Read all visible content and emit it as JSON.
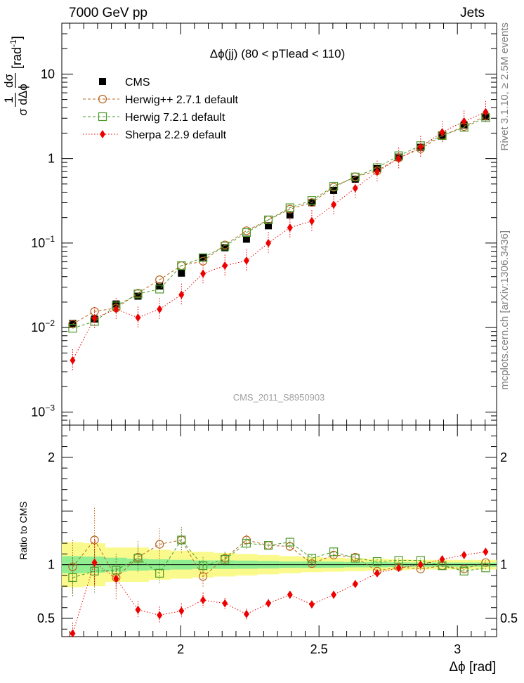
{
  "header": {
    "left": "7000 GeV pp",
    "right": "Jets",
    "side_rivet": "Rivet 3.1.10, ≥ 2.5M events",
    "side_mcplots": "mcplots.cern.ch [arXiv:1306.3436]",
    "watermark": "CMS_2011_S8950903"
  },
  "chart_data": [
    {
      "type": "scatter",
      "panel": "main",
      "title": "Δϕ(jj) (80 < pTlead < 110)",
      "ylabel": "1/σ dσ/dΔϕ [rad⁻¹]",
      "ylabel_parts": {
        "one": "1",
        "dsigma": "dσ",
        "sigma_dphi": "σ dΔϕ",
        "unit": "[rad",
        "exp": "-1",
        "close": "]"
      },
      "xlabel": "Δϕ [rad]",
      "xlim": [
        1.5708,
        3.1416
      ],
      "ylim": [
        0.0007,
        40
      ],
      "yscale": "log",
      "yticks": [
        {
          "value": 0.001,
          "base": "10",
          "exp": "−3"
        },
        {
          "value": 0.01,
          "base": "10",
          "exp": "−2"
        },
        {
          "value": 0.1,
          "base": "10",
          "exp": "−1"
        },
        {
          "value": 1,
          "base": "1",
          "exp": ""
        },
        {
          "value": 10,
          "base": "10",
          "exp": ""
        }
      ],
      "x": [
        1.61,
        1.689,
        1.767,
        1.846,
        1.924,
        2.003,
        2.081,
        2.16,
        2.238,
        2.317,
        2.395,
        2.474,
        2.553,
        2.631,
        2.71,
        2.788,
        2.867,
        2.945,
        3.024,
        3.102
      ],
      "legend_position": "top-left",
      "series": [
        {
          "name": "CMS",
          "color": "#000000",
          "marker": "filled-square",
          "line": "none",
          "values": [
            0.0112,
            0.0126,
            0.019,
            0.0235,
            0.031,
            0.044,
            0.068,
            0.088,
            0.111,
            0.16,
            0.215,
            0.3,
            0.42,
            0.57,
            0.76,
            1.04,
            1.36,
            1.88,
            2.5,
            3.12
          ]
        },
        {
          "name": "Herwig++ 2.7.1 default",
          "color": "#b8651e",
          "marker": "open-circle",
          "line": "dashed",
          "values": [
            0.011,
            0.0155,
            0.017,
            0.0255,
            0.0368,
            0.054,
            0.061,
            0.095,
            0.14,
            0.188,
            0.252,
            0.302,
            0.458,
            0.61,
            0.715,
            1.02,
            1.31,
            1.86,
            2.4,
            3.2
          ]
        },
        {
          "name": "Herwig 7.2.1 default",
          "color": "#4c9a2a",
          "marker": "open-square",
          "line": "dashed",
          "values": [
            0.0098,
            0.0118,
            0.018,
            0.025,
            0.0285,
            0.054,
            0.067,
            0.092,
            0.133,
            0.188,
            0.262,
            0.32,
            0.47,
            0.605,
            0.78,
            1.08,
            1.42,
            1.87,
            2.34,
            3.05
          ]
        },
        {
          "name": "Sherpa 2.2.9 default",
          "color": "#ee0000",
          "marker": "filled-diamond",
          "line": "dotted",
          "values": [
            0.0041,
            0.0129,
            0.0165,
            0.0131,
            0.0165,
            0.0245,
            0.0435,
            0.054,
            0.062,
            0.1,
            0.152,
            0.182,
            0.285,
            0.445,
            0.7,
            1.0,
            1.37,
            2.05,
            2.75,
            3.55
          ]
        }
      ]
    },
    {
      "type": "scatter",
      "panel": "ratio",
      "ylabel": "Ratio to CMS",
      "xlabel": "Δϕ [rad]",
      "xlim": [
        1.5708,
        3.1416
      ],
      "ylim": [
        0.33,
        2.3
      ],
      "yticks": [
        0.5,
        1,
        2
      ],
      "xticks": [
        2,
        2.5,
        3
      ],
      "x": [
        1.61,
        1.689,
        1.767,
        1.846,
        1.924,
        2.003,
        2.081,
        2.16,
        2.238,
        2.317,
        2.395,
        2.474,
        2.553,
        2.631,
        2.71,
        2.788,
        2.867,
        2.945,
        3.024,
        3.102
      ],
      "band_inner": [
        0.08,
        0.075,
        0.065,
        0.055,
        0.05,
        0.045,
        0.04,
        0.04,
        0.038,
        0.035,
        0.03,
        0.03,
        0.028,
        0.025,
        0.025,
        0.022,
        0.02,
        0.02,
        0.02,
        0.02
      ],
      "band_outer": [
        0.21,
        0.2,
        0.16,
        0.16,
        0.14,
        0.13,
        0.12,
        0.11,
        0.1,
        0.09,
        0.08,
        0.07,
        0.065,
        0.06,
        0.055,
        0.05,
        0.045,
        0.045,
        0.045,
        0.045
      ],
      "band_colors": {
        "inner": "#90ee90",
        "outer": "#fafa8c"
      },
      "series": [
        {
          "name": "Herwig++ 2.7.1 default",
          "color": "#b8651e",
          "marker": "open-circle",
          "line": "dashed",
          "values": [
            0.98,
            1.23,
            0.88,
            1.07,
            1.19,
            1.23,
            0.89,
            1.06,
            1.23,
            1.18,
            1.17,
            1.01,
            1.09,
            1.07,
            0.94,
            0.98,
            0.96,
            0.99,
            0.96,
            1.02
          ],
          "errors": [
            0.25,
            0.3,
            0.2,
            0.15,
            0.15,
            0.12,
            0.1,
            0.06,
            0.05,
            0.04,
            0.04,
            0.03,
            0.03,
            0.03,
            0.02,
            0.02,
            0.02,
            0.02,
            0.02,
            0.02
          ]
        },
        {
          "name": "Herwig 7.2.1 default",
          "color": "#4c9a2a",
          "marker": "open-square",
          "line": "dashed",
          "values": [
            0.88,
            0.94,
            0.95,
            1.06,
            0.92,
            1.23,
            0.99,
            1.05,
            1.2,
            1.18,
            1.21,
            1.06,
            1.12,
            1.06,
            1.03,
            1.04,
            1.04,
            0.99,
            0.94,
            0.97
          ],
          "errors": [
            0.18,
            0.2,
            0.15,
            0.12,
            0.1,
            0.1,
            0.08,
            0.06,
            0.05,
            0.04,
            0.04,
            0.03,
            0.03,
            0.03,
            0.02,
            0.02,
            0.02,
            0.02,
            0.02,
            0.02
          ]
        },
        {
          "name": "Sherpa 2.2.9 default",
          "color": "#ee0000",
          "marker": "filled-diamond",
          "line": "dotted",
          "values": [
            0.36,
            1.02,
            0.87,
            0.58,
            0.53,
            0.57,
            0.67,
            0.64,
            0.54,
            0.64,
            0.72,
            0.63,
            0.72,
            0.82,
            0.92,
            0.97,
            1.0,
            1.05,
            1.09,
            1.12
          ],
          "errors": [
            0.1,
            0.22,
            0.1,
            0.08,
            0.08,
            0.07,
            0.07,
            0.05,
            0.05,
            0.04,
            0.03,
            0.03,
            0.03,
            0.02,
            0.02,
            0.02,
            0.02,
            0.01,
            0.01,
            0.01
          ]
        }
      ]
    }
  ]
}
